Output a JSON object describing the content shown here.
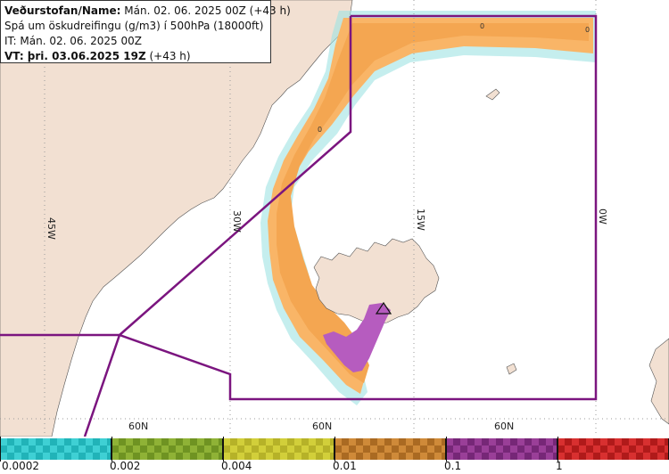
{
  "header": {
    "line1_label": "Veðurstofan/Name:",
    "line1_value": "Mán. 02. 06. 2025 00Z (+43 h)",
    "line2": "Spá um öskudreifingu (g/m3) í 500hPa (18000ft)",
    "line3": "IT: Mán. 02. 06. 2025 00Z",
    "line4_label": "VT: þri. 03.06.2025 19Z",
    "line4_value": "(+43 h)"
  },
  "map": {
    "lon_labels": [
      "45W",
      "30W",
      "15W",
      "0W"
    ],
    "lat_labels": [
      "60N",
      "60N",
      "60N"
    ],
    "contour_labels": [
      "0",
      "0",
      "0"
    ],
    "colors": {
      "land": "#f2e0d2",
      "ocean": "#ffffff",
      "ash_low": "#f9b567",
      "ash_mid": "#f4a651",
      "ash_high": "#b65cbf",
      "sparse": "#9fe3e3",
      "boundary": "#7b157f"
    }
  },
  "legend": {
    "bins": [
      {
        "color_a": "#3fd0d4",
        "color_b": "#21b3b8"
      },
      {
        "color_a": "#8fb236",
        "color_b": "#6f9322"
      },
      {
        "color_a": "#d2cf3a",
        "color_b": "#b6b228"
      },
      {
        "color_a": "#cf8a39",
        "color_b": "#aa6a22"
      },
      {
        "color_a": "#9a3f98",
        "color_b": "#762777"
      },
      {
        "color_a": "#d83030",
        "color_b": "#b01a1a"
      }
    ],
    "ticks": [
      "0.0002",
      "0.002",
      "0.004",
      "0.01",
      "0.1",
      "1"
    ]
  }
}
